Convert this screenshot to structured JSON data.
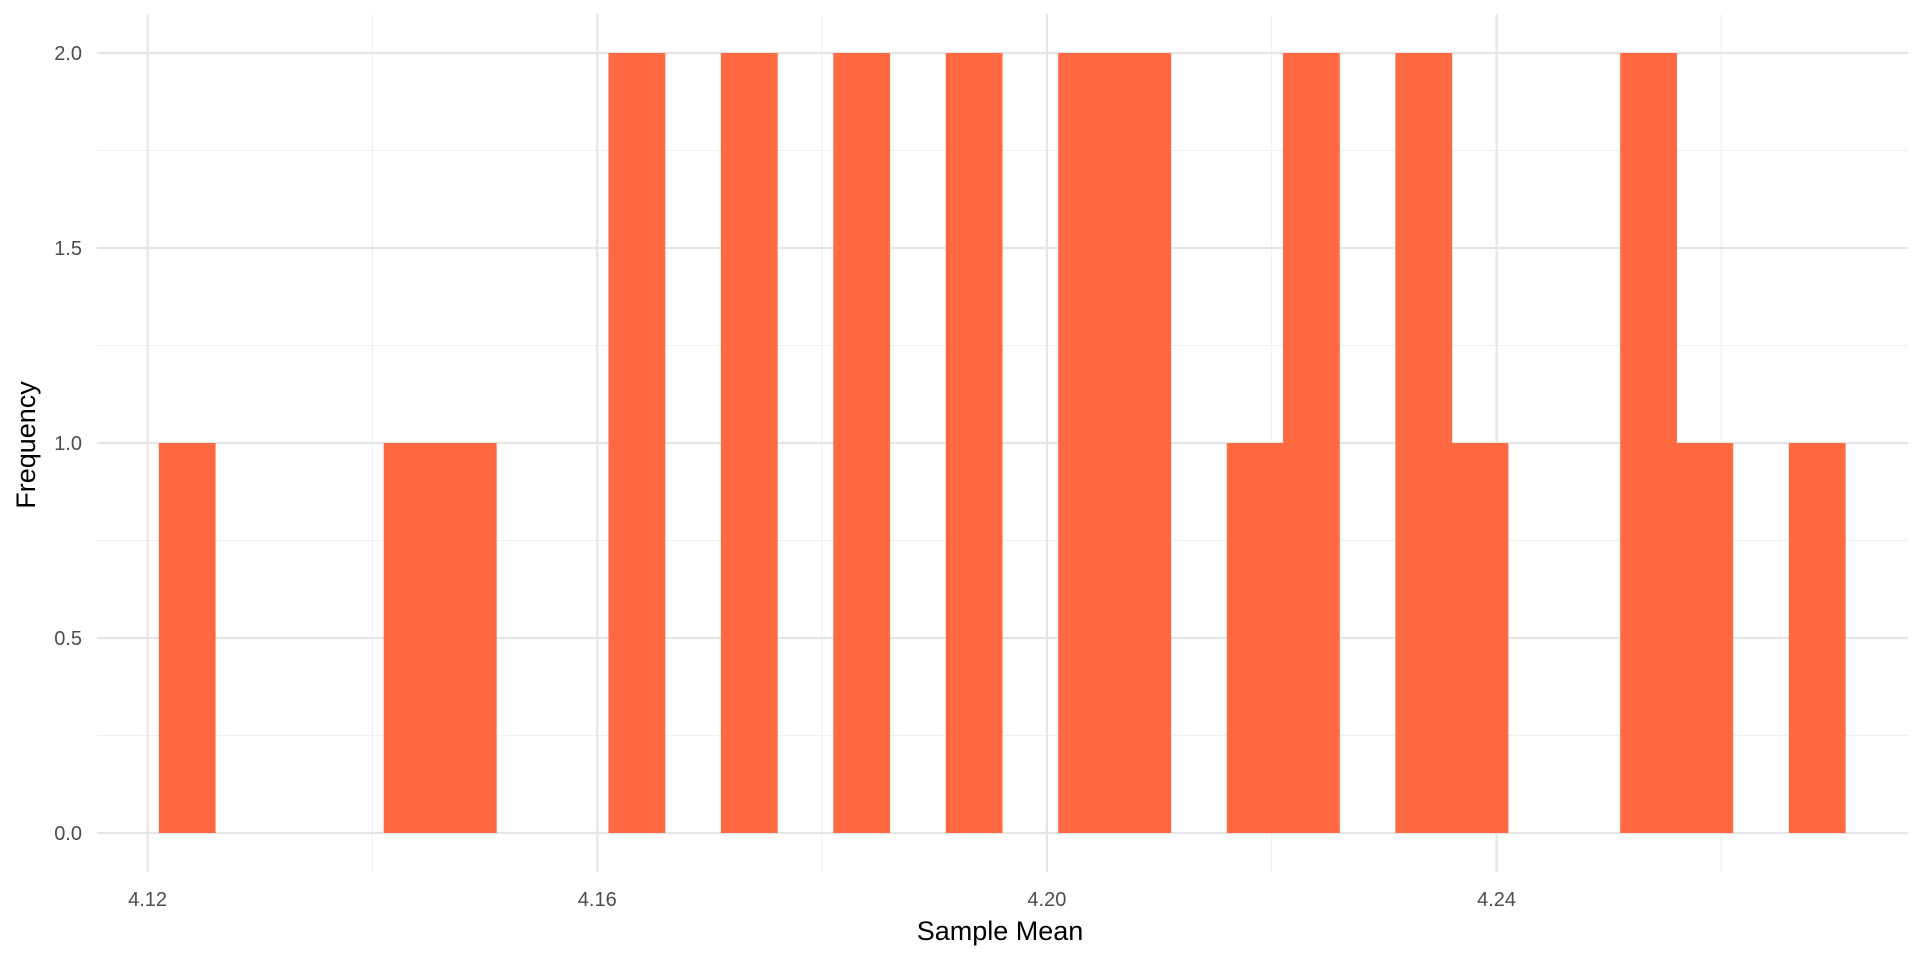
{
  "chart_data": {
    "type": "bar",
    "subtype": "histogram",
    "title": "",
    "xlabel": "Sample Mean",
    "ylabel": "Frequency",
    "bin_width": 0.005,
    "bins": [
      {
        "start": 4.121,
        "end": 4.126,
        "count": 1
      },
      {
        "start": 4.141,
        "end": 4.146,
        "count": 1
      },
      {
        "start": 4.146,
        "end": 4.151,
        "count": 1
      },
      {
        "start": 4.161,
        "end": 4.166,
        "count": 2
      },
      {
        "start": 4.171,
        "end": 4.176,
        "count": 2
      },
      {
        "start": 4.181,
        "end": 4.186,
        "count": 2
      },
      {
        "start": 4.191,
        "end": 4.196,
        "count": 2
      },
      {
        "start": 4.201,
        "end": 4.206,
        "count": 2
      },
      {
        "start": 4.206,
        "end": 4.211,
        "count": 2
      },
      {
        "start": 4.216,
        "end": 4.221,
        "count": 1
      },
      {
        "start": 4.221,
        "end": 4.226,
        "count": 2
      },
      {
        "start": 4.231,
        "end": 4.236,
        "count": 2
      },
      {
        "start": 4.236,
        "end": 4.241,
        "count": 1
      },
      {
        "start": 4.251,
        "end": 4.256,
        "count": 2
      },
      {
        "start": 4.256,
        "end": 4.261,
        "count": 1
      },
      {
        "start": 4.266,
        "end": 4.271,
        "count": 1
      }
    ],
    "xlim": [
      4.1155,
      4.2766
    ],
    "ylim": [
      -0.1,
      2.1
    ],
    "x_ticks": [
      4.12,
      4.16,
      4.2,
      4.24
    ],
    "x_tick_labels": [
      "4.12",
      "4.16",
      "4.20",
      "4.24"
    ],
    "x_minor_ticks": [
      4.14,
      4.18,
      4.22,
      4.26
    ],
    "y_ticks": [
      0,
      0.5,
      1,
      1.5,
      2
    ],
    "y_tick_labels": [
      "0.0",
      "0.5",
      "1.0",
      "1.5",
      "2.0"
    ],
    "y_minor_ticks": [
      0.25,
      0.75,
      1.25,
      1.75
    ],
    "grid": true,
    "bar_color": "#FF6A43"
  }
}
